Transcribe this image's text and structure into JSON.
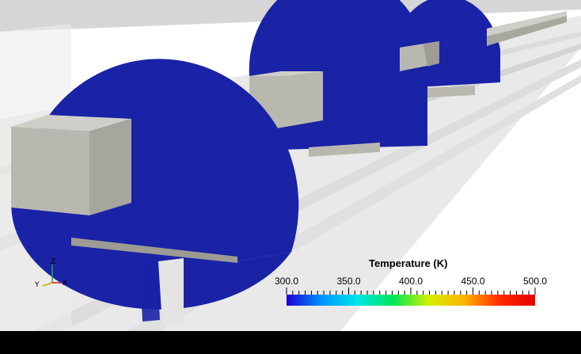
{
  "colorbar": {
    "title": "Temperature (K)",
    "min": 300.0,
    "max": 500.0,
    "tick_labels": [
      "300.0",
      "350.0",
      "400.0",
      "450.0",
      "500.0"
    ],
    "minor_ticks": 40,
    "colormap_stops": [
      "#1a00d8",
      "#0096ff",
      "#00e6e6",
      "#00e65a",
      "#d2f000",
      "#ffb400",
      "#ff2a00",
      "#e60000"
    ]
  },
  "orientation_axes": {
    "x": "X",
    "y": "Y",
    "z": "Z"
  },
  "colors": {
    "background": "#ffffff",
    "field_value": "#1a22a6",
    "solid_grey": "#b9b8b0",
    "bottom_bar": "#000000"
  }
}
